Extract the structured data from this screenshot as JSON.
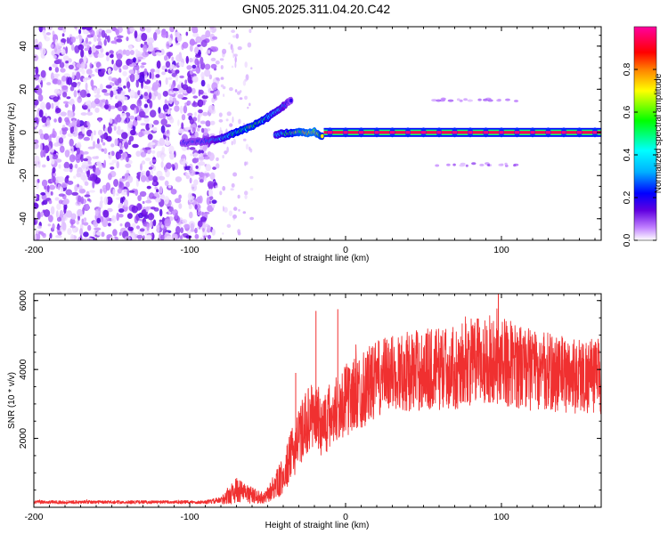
{
  "title": "GN05.2025.311.04.20.C42",
  "colors": {
    "snr_line": "#f03030",
    "axis": "#000000",
    "noise_dark": "#6a00d8",
    "noise_light": "#e2c8ff",
    "band_core": "#ff2a2a",
    "band_mid": "#ffe000",
    "band_edge": "#00e0c0",
    "background": "#ffffff"
  },
  "chart_data": [
    {
      "type": "heatmap",
      "name": "spectrogram",
      "xlabel": "Height of straight line (km)",
      "ylabel": "Frequency (Hz)",
      "xlim": [
        -200,
        164
      ],
      "ylim": [
        -50,
        49
      ],
      "x_ticks": [
        -200,
        -100,
        0,
        100
      ],
      "x_tick_labels": [
        "-200",
        "-100",
        "0",
        "100"
      ],
      "y_ticks": [
        -40,
        -20,
        0,
        20,
        40
      ],
      "y_tick_labels": [
        "-40",
        "-20",
        "0",
        "20",
        "40"
      ],
      "colorbar": {
        "label": "Normalized spectral amplitude",
        "range": [
          0,
          1
        ],
        "ticks": [
          0.0,
          0.2,
          0.4,
          0.6,
          0.8
        ],
        "tick_labels": [
          "0.0",
          "0.2",
          "0.4",
          "0.6",
          "0.8"
        ],
        "colormap": [
          "#ffffff",
          "#c080ff",
          "#6000e0",
          "#0000ff",
          "#00c0ff",
          "#00ffff",
          "#00ff00",
          "#ffff00",
          "#ff8000",
          "#ff0000",
          "#ff00a0"
        ]
      },
      "noise_region": {
        "x_range": [
          -200,
          -83
        ],
        "y_range": [
          -50,
          49
        ]
      },
      "sparse_region": {
        "x_range": [
          -83,
          -60
        ]
      },
      "band": [
        {
          "x": -105,
          "y": -5,
          "amp": 0.3
        },
        {
          "x": -90,
          "y": -4,
          "amp": 0.35
        },
        {
          "x": -80,
          "y": -3,
          "amp": 0.5
        },
        {
          "x": -70,
          "y": 0,
          "amp": 0.65
        },
        {
          "x": -60,
          "y": 3,
          "amp": 0.7
        },
        {
          "x": -50,
          "y": 7,
          "amp": 0.6
        },
        {
          "x": -40,
          "y": 12,
          "amp": 0.45
        },
        {
          "x": -35,
          "y": 15,
          "amp": 0.3
        },
        {
          "x": -45,
          "y": -1,
          "amp": 0.5
        },
        {
          "x": -30,
          "y": 0,
          "amp": 0.75
        },
        {
          "x": -20,
          "y": 0,
          "amp": 0.8
        },
        {
          "x": -15,
          "y": -2,
          "amp": 0.7
        },
        {
          "x": 0,
          "y": 0,
          "amp": 0.95
        },
        {
          "x": 50,
          "y": 0,
          "amp": 0.95
        },
        {
          "x": 100,
          "y": 0,
          "amp": 0.95
        },
        {
          "x": 164,
          "y": 0,
          "amp": 0.95
        }
      ],
      "faint_sidebands": [
        {
          "x_range": [
            55,
            110
          ],
          "y": 15,
          "amp": 0.1
        },
        {
          "x_range": [
            55,
            110
          ],
          "y": -15,
          "amp": 0.1
        }
      ]
    },
    {
      "type": "line",
      "name": "snr",
      "xlabel": "Height of straight line (km)",
      "ylabel": "SNR (10 * v/v)",
      "xlim": [
        -200,
        164
      ],
      "ylim": [
        0,
        6200
      ],
      "x_ticks": [
        -200,
        -100,
        0,
        100
      ],
      "x_tick_labels": [
        "-200",
        "-100",
        "0",
        "100"
      ],
      "y_ticks": [
        2000,
        4000,
        6000
      ],
      "y_tick_labels": [
        "2000",
        "4000",
        "6000"
      ],
      "series": [
        {
          "name": "SNR",
          "envelope_x": [
            -200,
            -90,
            -80,
            -75,
            -70,
            -60,
            -52,
            -40,
            -35,
            -30,
            -25,
            -20,
            -15,
            -10,
            -5,
            0,
            10,
            20,
            30,
            50,
            70,
            80,
            95,
            100,
            120,
            140,
            164
          ],
          "envelope_mean": [
            150,
            150,
            200,
            350,
            500,
            350,
            250,
            900,
            1500,
            2000,
            2500,
            2700,
            2400,
            2600,
            2900,
            3100,
            3400,
            3700,
            3900,
            4000,
            4050,
            4200,
            4300,
            4250,
            4000,
            3850,
            3800
          ],
          "envelope_spread": [
            60,
            60,
            120,
            350,
            450,
            300,
            200,
            700,
            900,
            1100,
            1200,
            1200,
            1200,
            1300,
            1300,
            1300,
            1400,
            1400,
            1400,
            1500,
            1500,
            1600,
            1600,
            1600,
            1500,
            1400,
            1400
          ]
        }
      ],
      "spikes": [
        {
          "x": -32,
          "y": 3900
        },
        {
          "x": -19,
          "y": 5700
        },
        {
          "x": -5,
          "y": 5750
        },
        {
          "x": 98,
          "y": 6200
        }
      ]
    }
  ]
}
